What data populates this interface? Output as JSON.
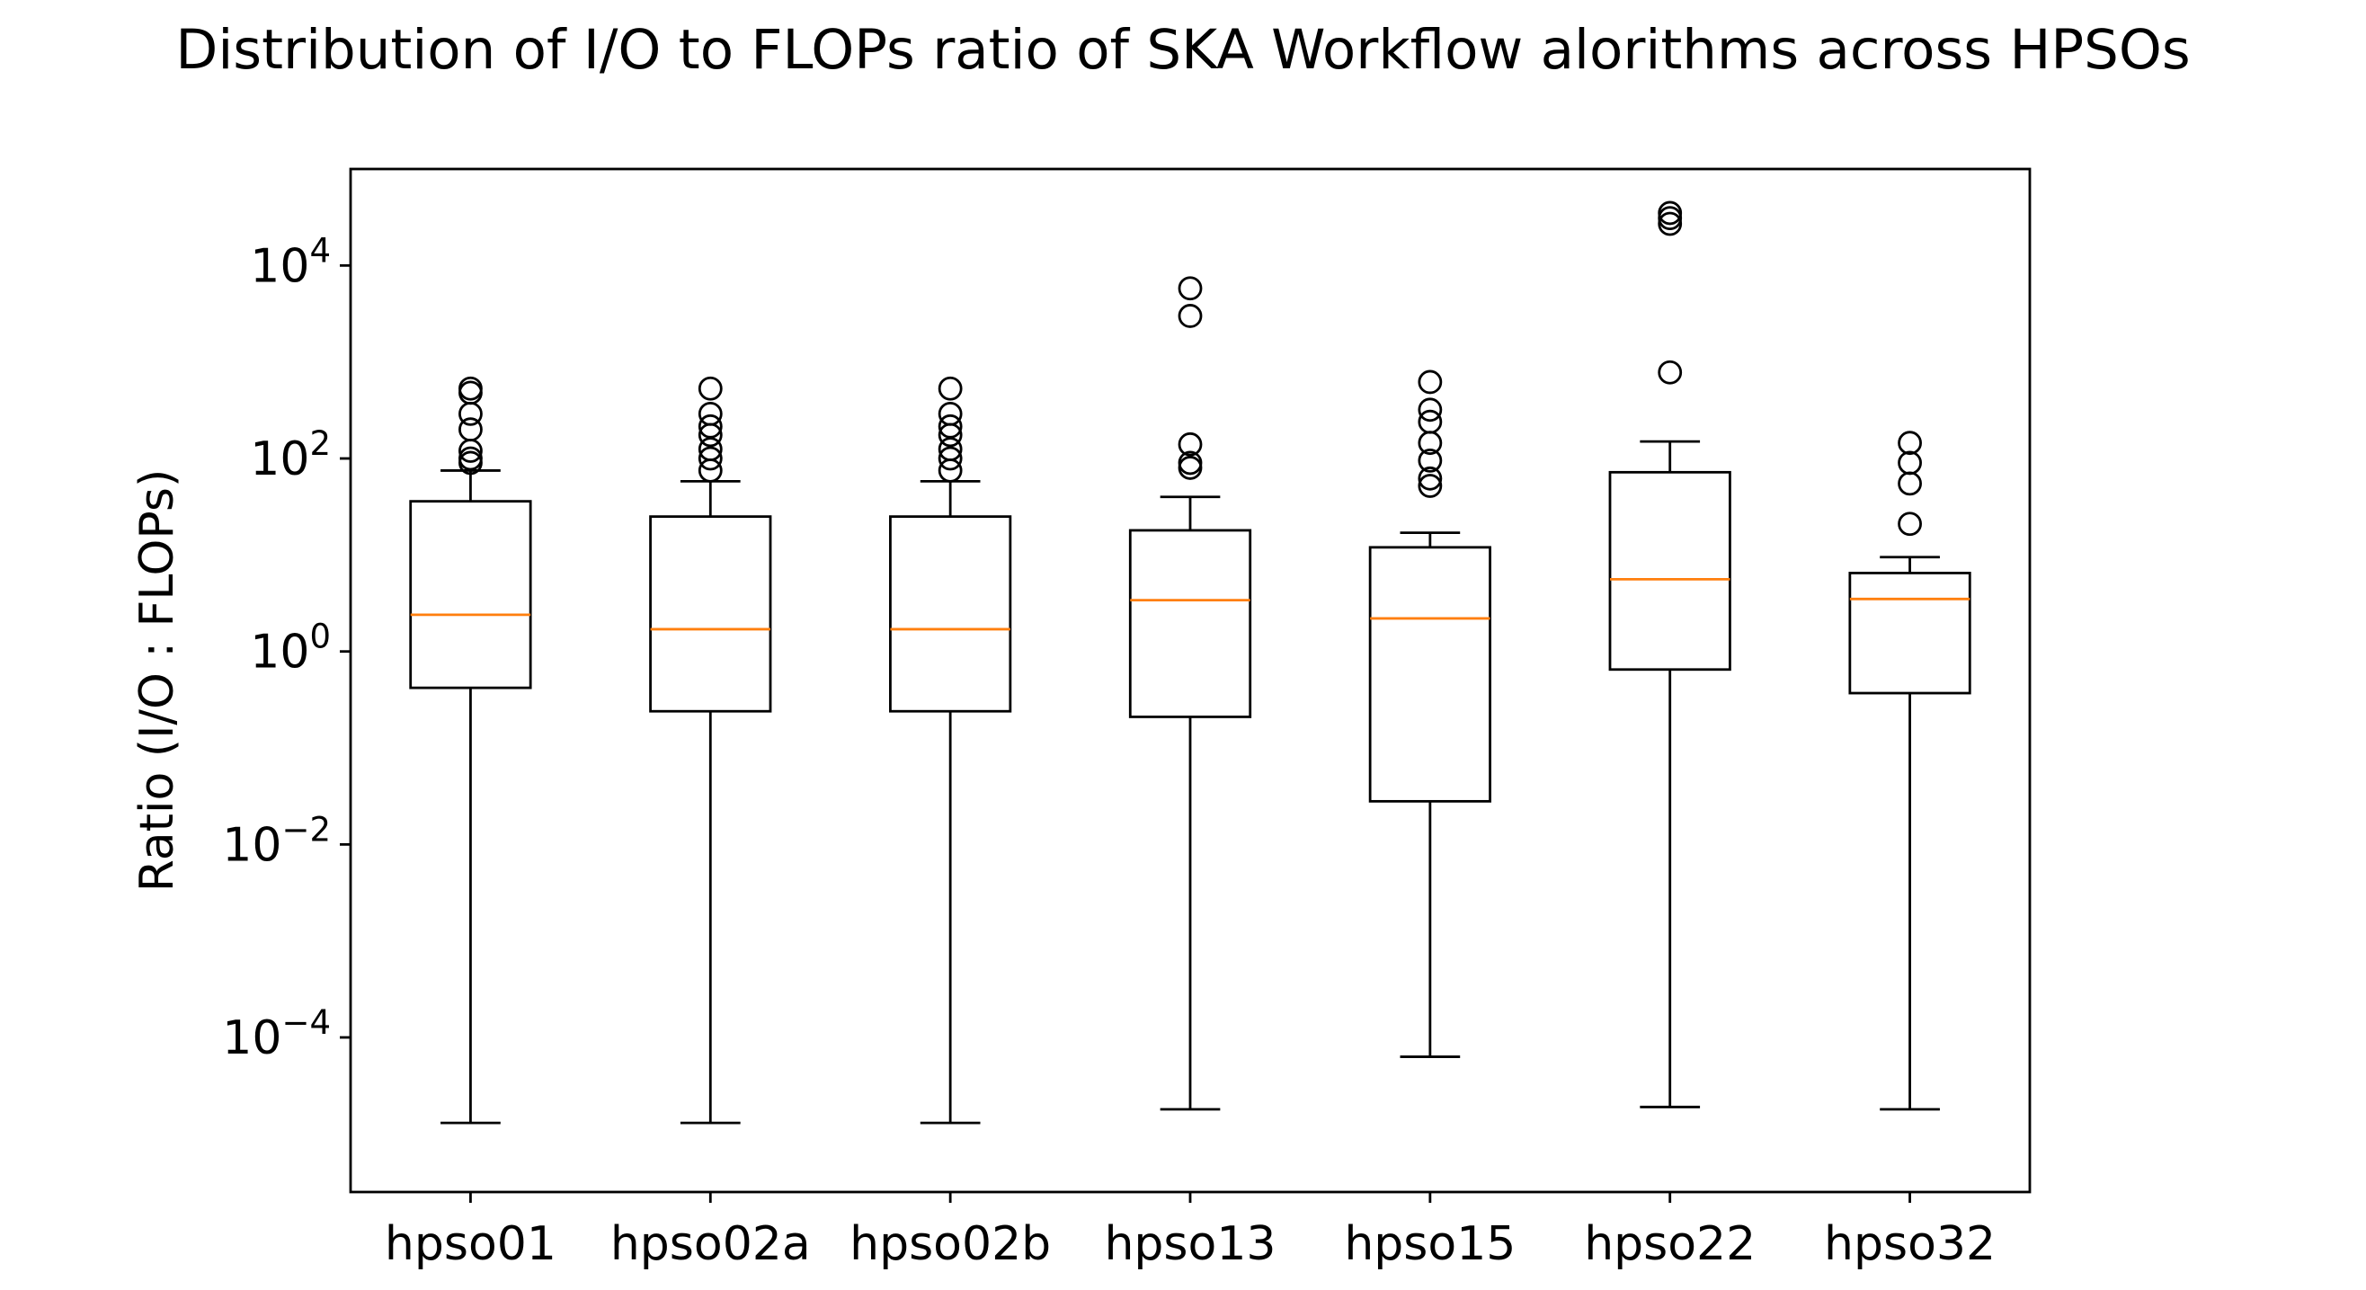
{
  "chart_data": {
    "type": "box",
    "title": "Distribution of I/O to FLOPs ratio of SKA Workflow alorithms across HPSOs",
    "xlabel": "",
    "ylabel": "Ratio (I/O : FLOPs)",
    "yscale": "log",
    "ylim": [
      2.5e-06,
      100000
    ],
    "yticks": [
      {
        "value": 0.0001,
        "base": "10",
        "exp": "−4"
      },
      {
        "value": 0.01,
        "base": "10",
        "exp": "−2"
      },
      {
        "value": 1,
        "base": "10",
        "exp": "0"
      },
      {
        "value": 100,
        "base": "10",
        "exp": "2"
      },
      {
        "value": 10000,
        "base": "10",
        "exp": "4"
      }
    ],
    "categories": [
      "hpso01",
      "hpso02a",
      "hpso02b",
      "hpso13",
      "hpso15",
      "hpso22",
      "hpso32"
    ],
    "boxes": [
      {
        "label": "hpso01",
        "whislo": 1.3e-05,
        "q1": 0.42,
        "med": 2.4,
        "q3": 36,
        "whishi": 75,
        "fliers": [
          90,
          100,
          120,
          200,
          290,
          480,
          530
        ]
      },
      {
        "label": "hpso02a",
        "whislo": 1.3e-05,
        "q1": 0.24,
        "med": 1.7,
        "q3": 25,
        "whishi": 58,
        "fliers": [
          75,
          100,
          125,
          175,
          215,
          290,
          530
        ]
      },
      {
        "label": "hpso02b",
        "whislo": 1.3e-05,
        "q1": 0.24,
        "med": 1.7,
        "q3": 25,
        "whishi": 58,
        "fliers": [
          75,
          100,
          125,
          175,
          215,
          290,
          530
        ]
      },
      {
        "label": "hpso13",
        "whislo": 1.8e-05,
        "q1": 0.21,
        "med": 3.4,
        "q3": 18,
        "whishi": 40,
        "fliers": [
          80,
          90,
          140,
          3000,
          5800
        ]
      },
      {
        "label": "hpso15",
        "whislo": 6.3e-05,
        "q1": 0.028,
        "med": 2.2,
        "q3": 12,
        "whishi": 17,
        "fliers": [
          52,
          62,
          95,
          145,
          240,
          320,
          620
        ]
      },
      {
        "label": "hpso22",
        "whislo": 1.9e-05,
        "q1": 0.65,
        "med": 5.6,
        "q3": 72,
        "whishi": 150,
        "fliers": [
          780,
          27000,
          31000,
          35000
        ]
      },
      {
        "label": "hpso32",
        "whislo": 1.8e-05,
        "q1": 0.37,
        "med": 3.5,
        "q3": 6.5,
        "whishi": 9.5,
        "fliers": [
          21,
          55,
          90,
          145
        ]
      }
    ],
    "colors": {
      "box": "#000000",
      "median": "#ff7f0e",
      "flier": "#000000",
      "background": "#ffffff"
    },
    "grid": false,
    "legend": "none"
  }
}
